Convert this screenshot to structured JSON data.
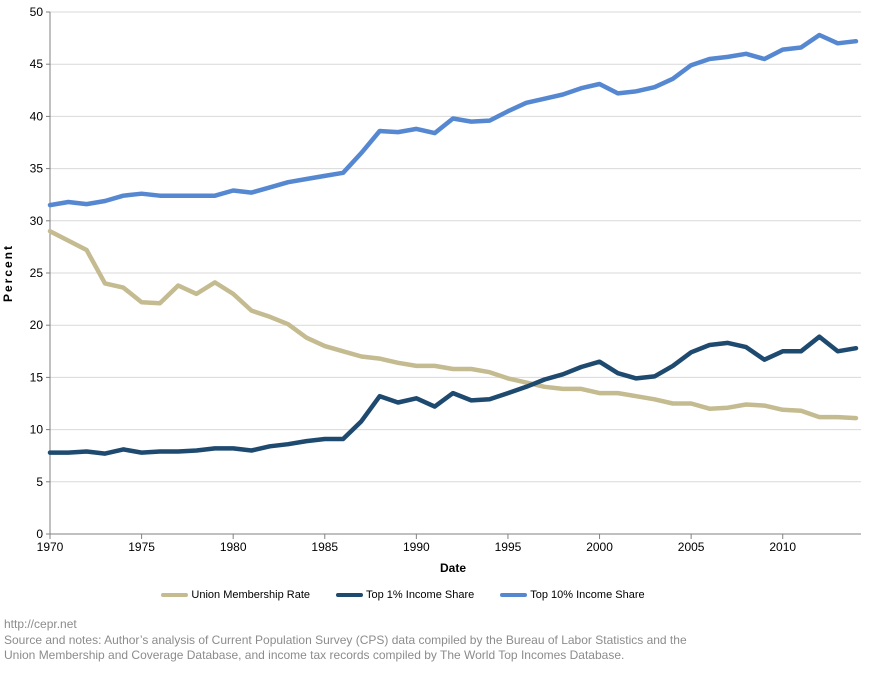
{
  "chart_data": {
    "type": "line",
    "title": "",
    "xlabel": "Date",
    "ylabel": "Percent",
    "xlim": [
      1970,
      2014
    ],
    "ylim": [
      0,
      50
    ],
    "grid": true,
    "legend_position": "bottom",
    "x_ticks": [
      1970,
      1975,
      1980,
      1985,
      1990,
      1995,
      2000,
      2005,
      2010
    ],
    "y_ticks": [
      0,
      5,
      10,
      15,
      20,
      25,
      30,
      35,
      40,
      45,
      50
    ],
    "x": [
      1970,
      1971,
      1972,
      1973,
      1974,
      1975,
      1976,
      1977,
      1978,
      1979,
      1980,
      1981,
      1982,
      1983,
      1984,
      1985,
      1986,
      1987,
      1988,
      1989,
      1990,
      1991,
      1992,
      1993,
      1994,
      1995,
      1996,
      1997,
      1998,
      1999,
      2000,
      2001,
      2002,
      2003,
      2004,
      2005,
      2006,
      2007,
      2008,
      2009,
      2010,
      2011,
      2012,
      2013,
      2014
    ],
    "series": [
      {
        "name": "Union Membership Rate",
        "color": "#C5BB90",
        "values": [
          29.0,
          28.1,
          27.2,
          24.0,
          23.6,
          22.2,
          22.1,
          23.8,
          23.0,
          24.1,
          23.0,
          21.4,
          20.8,
          20.1,
          18.8,
          18.0,
          17.5,
          17.0,
          16.8,
          16.4,
          16.1,
          16.1,
          15.8,
          15.8,
          15.5,
          14.9,
          14.5,
          14.1,
          13.9,
          13.9,
          13.5,
          13.5,
          13.2,
          12.9,
          12.5,
          12.5,
          12.0,
          12.1,
          12.4,
          12.3,
          11.9,
          11.8,
          11.2,
          11.2,
          11.1
        ]
      },
      {
        "name": "Top 1% Income Share",
        "color": "#1F4A70",
        "values": [
          7.8,
          7.8,
          7.9,
          7.7,
          8.1,
          7.8,
          7.9,
          7.9,
          8.0,
          8.2,
          8.2,
          8.0,
          8.4,
          8.6,
          8.9,
          9.1,
          9.1,
          10.8,
          13.2,
          12.6,
          13.0,
          12.2,
          13.5,
          12.8,
          12.9,
          13.5,
          14.1,
          14.8,
          15.3,
          16.0,
          16.5,
          15.4,
          14.9,
          15.1,
          16.1,
          17.4,
          18.1,
          18.3,
          17.9,
          16.7,
          17.5,
          17.5,
          18.9,
          17.5,
          17.8
        ]
      },
      {
        "name": "Top 10% Income Share",
        "color": "#5688D2",
        "values": [
          31.5,
          31.8,
          31.6,
          31.9,
          32.4,
          32.6,
          32.4,
          32.4,
          32.4,
          32.4,
          32.9,
          32.7,
          33.2,
          33.7,
          34.0,
          34.3,
          34.6,
          36.5,
          38.6,
          38.5,
          38.8,
          38.4,
          39.8,
          39.5,
          39.6,
          40.5,
          41.3,
          41.7,
          42.1,
          42.7,
          43.1,
          42.2,
          42.4,
          42.8,
          43.6,
          44.9,
          45.5,
          45.7,
          46.0,
          45.5,
          46.4,
          46.6,
          47.8,
          47.0,
          47.2
        ]
      }
    ]
  },
  "footer": {
    "lines": [
      "http://cepr.net",
      "Source and notes: Author’s analysis of Current Population Survey (CPS) data compiled by the Bureau of Labor Statistics and the",
      "Union Membership and Coverage Database, and income tax records compiled by The World Top Incomes Database."
    ]
  },
  "colors": {
    "gridline": "#D9D9D9",
    "axis": "#808080",
    "tick_text": "#000000",
    "footer_text": "#8C8C8C"
  }
}
